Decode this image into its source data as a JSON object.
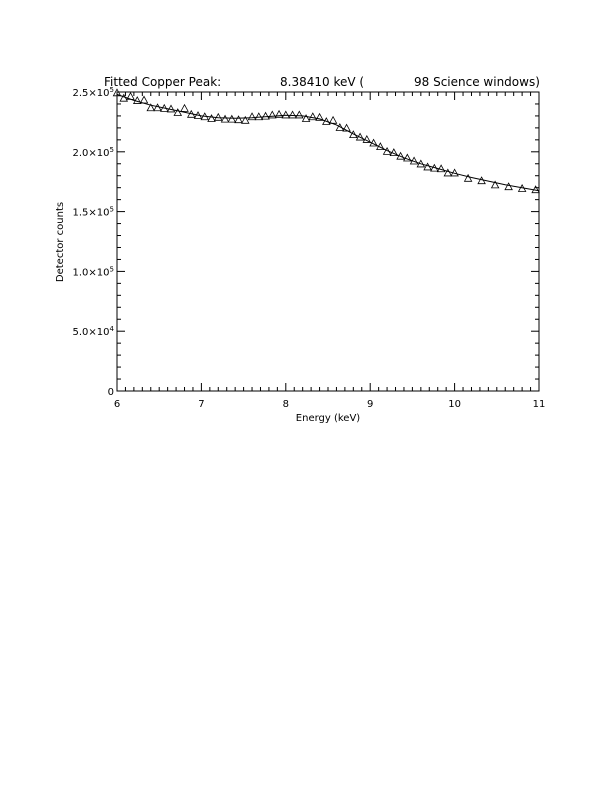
{
  "chart_data": {
    "type": "scatter",
    "title": {
      "prefix": "Fitted Copper Peak:",
      "energy": "8.38410 keV (",
      "windows": "98 Science windows)"
    },
    "xlabel": "Energy (keV)",
    "ylabel": "Detector counts",
    "xlim": [
      6,
      11
    ],
    "ylim": [
      0,
      250000
    ],
    "x_ticks": [
      {
        "value": 6,
        "label": "6"
      },
      {
        "value": 7,
        "label": "7"
      },
      {
        "value": 8,
        "label": "8"
      },
      {
        "value": 9,
        "label": "9"
      },
      {
        "value": 10,
        "label": "10"
      },
      {
        "value": 11,
        "label": "11"
      }
    ],
    "y_ticks": [
      {
        "value": 0,
        "mantissa": "0",
        "exponent": ""
      },
      {
        "value": 50000,
        "mantissa": "5.0×10",
        "exponent": "4"
      },
      {
        "value": 100000,
        "mantissa": "1.0×10",
        "exponent": "5"
      },
      {
        "value": 150000,
        "mantissa": "1.5×10",
        "exponent": "5"
      },
      {
        "value": 200000,
        "mantissa": "2.0×10",
        "exponent": "5"
      },
      {
        "value": 250000,
        "mantissa": "2.5×10",
        "exponent": "5"
      }
    ],
    "grid": false,
    "series": [
      {
        "kind": "markers",
        "marker": "triangle-open",
        "x": [
          6.0,
          6.08,
          6.16,
          6.24,
          6.32,
          6.4,
          6.48,
          6.56,
          6.64,
          6.72,
          6.8,
          6.88,
          6.96,
          7.04,
          7.12,
          7.2,
          7.28,
          7.36,
          7.44,
          7.52,
          7.6,
          7.68,
          7.76,
          7.84,
          7.92,
          8.0,
          8.08,
          8.16,
          8.24,
          8.32,
          8.4,
          8.48,
          8.56,
          8.64,
          8.72,
          8.8,
          8.88,
          8.96,
          9.04,
          9.12,
          9.2,
          9.28,
          9.36,
          9.44,
          9.52,
          9.6,
          9.68,
          9.76,
          9.84,
          9.92,
          10.0,
          10.16,
          10.32,
          10.48,
          10.64,
          10.8,
          10.96
        ],
        "y": [
          249000,
          244500,
          246000,
          242500,
          243000,
          236500,
          236500,
          236000,
          235500,
          232500,
          236000,
          231000,
          230000,
          229000,
          227500,
          228500,
          227000,
          227000,
          226500,
          226000,
          229000,
          229000,
          229500,
          230500,
          231000,
          230500,
          230500,
          230500,
          227500,
          229000,
          228500,
          225000,
          226000,
          220000,
          219500,
          214000,
          212000,
          210000,
          207000,
          204000,
          200000,
          199000,
          196000,
          194500,
          192000,
          189500,
          187000,
          186000,
          185500,
          182000,
          182000,
          177500,
          175500,
          172000,
          170500,
          169000,
          168000
        ]
      },
      {
        "kind": "line",
        "x": [
          6.0,
          6.2,
          6.4,
          6.6,
          6.8,
          7.0,
          7.2,
          7.4,
          7.6,
          7.8,
          8.0,
          8.2,
          8.4,
          8.6,
          8.8,
          9.0,
          9.2,
          9.4,
          9.6,
          9.8,
          10.0,
          10.2,
          10.4,
          10.6,
          10.8,
          11.0
        ],
        "y": [
          248000,
          243000,
          239000,
          236000,
          233000,
          230000,
          228500,
          228000,
          228500,
          229500,
          230500,
          230000,
          227500,
          222500,
          215000,
          208000,
          201000,
          195000,
          190000,
          186000,
          182000,
          178500,
          175500,
          172500,
          170000,
          167500
        ]
      }
    ]
  }
}
